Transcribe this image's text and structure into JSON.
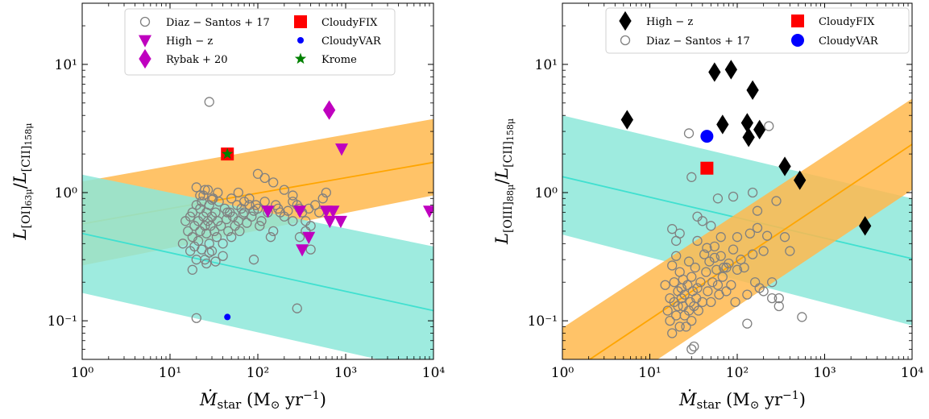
{
  "chart_data": [
    {
      "type": "scatter",
      "xscale": "log",
      "yscale": "log",
      "xlim": [
        1,
        10000
      ],
      "ylim": [
        0.05,
        30
      ],
      "xlabel": "Ṁstar (M⊙ yr⁻¹)",
      "ylabel": "L[OI]63μ / L[CII]158μ",
      "x_ticks": [
        1,
        10,
        100,
        1000,
        10000
      ],
      "x_tick_labels": [
        "10⁰",
        "10¹",
        "10²",
        "10³",
        "10⁴"
      ],
      "y_ticks": [
        0.1,
        1,
        10
      ],
      "y_tick_labels": [
        "10⁻¹",
        "10⁰",
        "10¹"
      ],
      "legend_location": "top",
      "bands": [
        {
          "name": "",
          "color": "#ffb84d",
          "x": [
            1,
            10000
          ],
          "lower": [
            0.27,
            0.95
          ],
          "upper": [
            1.22,
            3.75
          ],
          "center": [
            0.57,
            1.72
          ]
        },
        {
          "name": "",
          "color": "#8de8d9",
          "x": [
            1,
            10000
          ],
          "lower": [
            0.165,
            0.04
          ],
          "upper": [
            1.38,
            0.38
          ],
          "center": [
            0.48,
            0.12
          ]
        }
      ],
      "series": [
        {
          "name": "Diaz − Santos + 17",
          "marker": "open-circle",
          "color": "#808080",
          "x": [
            14,
            15,
            16,
            17,
            17,
            18,
            18,
            19,
            19,
            20,
            20,
            21,
            21,
            22,
            22,
            23,
            23,
            24,
            24,
            25,
            25,
            26,
            26,
            27,
            27,
            28,
            28,
            29,
            30,
            30,
            31,
            32,
            33,
            34,
            35,
            36,
            38,
            40,
            42,
            44,
            46,
            48,
            50,
            52,
            55,
            58,
            60,
            62,
            65,
            68,
            70,
            75,
            80,
            85,
            90,
            95,
            100,
            105,
            110,
            120,
            130,
            140,
            150,
            160,
            170,
            180,
            200,
            220,
            250,
            280,
            300,
            320,
            350,
            380,
            400,
            450,
            500,
            550,
            600,
            20,
            22,
            25,
            30,
            35,
            45,
            50,
            60,
            70,
            80,
            100,
            120,
            150,
            200,
            250,
            300,
            400,
            18,
            26,
            28,
            33,
            40,
            90,
            280,
            20,
            350
          ],
          "y": [
            0.4,
            0.6,
            0.5,
            0.65,
            0.35,
            0.7,
            0.45,
            0.55,
            0.38,
            0.8,
            0.3,
            0.6,
            0.42,
            0.75,
            0.5,
            0.85,
            0.36,
            0.65,
            0.95,
            0.55,
            0.3,
            0.7,
            0.48,
            0.6,
            1.05,
            0.4,
            0.8,
            0.55,
            0.65,
            0.35,
            0.9,
            0.5,
            0.7,
            0.45,
            0.6,
            0.85,
            0.55,
            0.4,
            0.75,
            0.62,
            0.5,
            0.7,
            0.45,
            0.65,
            0.55,
            0.8,
            0.6,
            0.5,
            0.75,
            0.68,
            0.7,
            0.58,
            0.9,
            0.65,
            0.72,
            0.8,
            0.75,
            0.55,
            0.6,
            0.85,
            0.7,
            0.45,
            0.5,
            0.8,
            0.75,
            0.7,
            0.65,
            0.72,
            0.6,
            0.8,
            0.45,
            0.7,
            0.6,
            0.75,
            0.55,
            0.8,
            0.7,
            0.9,
            1.0,
            1.1,
            0.95,
            1.05,
            0.88,
            1.0,
            0.7,
            0.9,
            1.0,
            0.85,
            0.8,
            1.4,
            1.3,
            1.2,
            1.05,
            0.85,
            0.75,
            0.36,
            0.25,
            0.28,
            0.34,
            0.29,
            0.32,
            0.3,
            0.125,
            0.105,
            0.5
          ],
          "extra": [
            {
              "x": 28,
              "y": 5.1
            },
            {
              "x": 250,
              "y": 0.95
            }
          ]
        },
        {
          "name": "High − z",
          "marker": "triangle-down",
          "color": "#bf00bf",
          "x": [
            130,
            300,
            320,
            380,
            600,
            660,
            720,
            880,
            900,
            9000
          ],
          "y": [
            0.72,
            0.72,
            0.36,
            0.45,
            0.72,
            0.6,
            0.72,
            0.6,
            2.2,
            0.72
          ]
        },
        {
          "name": "Rybak + 20",
          "marker": "diamond",
          "color": "#bf00bf",
          "x": [
            650
          ],
          "y": [
            4.4
          ]
        },
        {
          "name": "CloudyFIX",
          "marker": "square",
          "color": "#ff0000",
          "x": [
            45
          ],
          "y": [
            2.0
          ]
        },
        {
          "name": "CloudyVAR",
          "marker": "circle",
          "color": "#0000ff",
          "x": [
            45
          ],
          "y": [
            0.107
          ]
        },
        {
          "name": "Krome",
          "marker": "star",
          "color": "#008000",
          "x": [
            45
          ],
          "y": [
            2.0
          ]
        }
      ]
    },
    {
      "type": "scatter",
      "xscale": "log",
      "yscale": "log",
      "xlim": [
        1,
        10000
      ],
      "ylim": [
        0.05,
        30
      ],
      "xlabel": "Ṁstar (M⊙ yr⁻¹)",
      "ylabel": "L[OIII]88μ / L[CII]158μ",
      "x_ticks": [
        1,
        10,
        100,
        1000,
        10000
      ],
      "x_tick_labels": [
        "10⁰",
        "10¹",
        "10²",
        "10³",
        "10⁴"
      ],
      "y_ticks": [
        0.1,
        1,
        10
      ],
      "y_tick_labels": [
        "10⁻¹",
        "10⁰",
        "10¹"
      ],
      "legend_location": "top",
      "bands": [
        {
          "name": "",
          "color": "#8de8d9",
          "x": [
            1,
            10000
          ],
          "lower": [
            0.47,
            0.092
          ],
          "upper": [
            4.0,
            0.9
          ],
          "center": [
            1.33,
            0.305
          ]
        },
        {
          "name": "",
          "color": "#ffb84d",
          "x": [
            1,
            10000
          ],
          "lower": [
            0.016,
            1.05
          ],
          "upper": [
            0.088,
            5.4
          ],
          "center": [
            0.036,
            2.38
          ]
        }
      ],
      "series": [
        {
          "name": "High − z",
          "marker": "diamond",
          "color": "#000000",
          "x": [
            5.5,
            55,
            68,
            85,
            130,
            135,
            150,
            180,
            350,
            520,
            2900
          ],
          "y": [
            3.7,
            8.7,
            3.4,
            9.1,
            3.5,
            2.7,
            6.3,
            3.1,
            1.6,
            1.25,
            0.55
          ]
        },
        {
          "name": "Diaz − Santos + 17",
          "marker": "open-circle",
          "color": "#808080",
          "x": [
            15,
            16,
            17,
            17,
            18,
            18,
            19,
            19,
            20,
            20,
            21,
            21,
            22,
            22,
            23,
            23,
            24,
            24,
            25,
            25,
            26,
            27,
            28,
            28,
            29,
            30,
            30,
            31,
            32,
            33,
            34,
            35,
            36,
            38,
            40,
            42,
            44,
            46,
            48,
            50,
            52,
            55,
            58,
            60,
            62,
            65,
            68,
            70,
            75,
            80,
            85,
            90,
            95,
            100,
            110,
            120,
            130,
            140,
            150,
            160,
            170,
            180,
            200,
            220,
            250,
            280,
            300,
            350,
            400,
            550,
            20,
            30,
            60,
            90,
            170,
            230,
            30,
            32,
            35,
            28,
            130,
            18,
            22,
            40,
            50,
            65,
            100,
            150,
            200,
            250,
            300,
            35,
            45,
            55,
            75
          ],
          "y": [
            0.19,
            0.12,
            0.1,
            0.15,
            0.27,
            0.08,
            0.14,
            0.2,
            0.11,
            0.32,
            0.17,
            0.13,
            0.24,
            0.09,
            0.18,
            0.15,
            0.13,
            0.21,
            0.11,
            0.16,
            0.09,
            0.19,
            0.29,
            0.12,
            0.14,
            0.22,
            0.1,
            0.17,
            0.13,
            0.26,
            0.15,
            0.18,
            0.12,
            0.2,
            0.14,
            0.33,
            0.24,
            0.17,
            0.29,
            0.14,
            0.2,
            0.38,
            0.25,
            0.19,
            0.16,
            0.32,
            0.22,
            0.26,
            0.17,
            0.28,
            0.19,
            0.36,
            0.14,
            0.45,
            0.3,
            0.26,
            0.16,
            0.48,
            0.33,
            0.2,
            0.72,
            0.18,
            0.17,
            0.46,
            0.2,
            0.86,
            0.15,
            0.45,
            0.35,
            0.107,
            0.42,
            0.06,
            0.9,
            0.93,
            0.53,
            3.3,
            1.32,
            0.063,
            0.65,
            2.9,
            0.095,
            0.52,
            0.48,
            0.6,
            0.55,
            0.45,
            0.25,
            1.0,
            0.35,
            0.15,
            0.13,
            0.42,
            0.37,
            0.31,
            0.26
          ]
        },
        {
          "name": "CloudyFIX",
          "marker": "square",
          "color": "#ff0000",
          "x": [
            45
          ],
          "y": [
            1.55
          ]
        },
        {
          "name": "CloudyVAR",
          "marker": "circle",
          "color": "#0000ff",
          "x": [
            45
          ],
          "y": [
            2.75
          ]
        }
      ]
    }
  ]
}
